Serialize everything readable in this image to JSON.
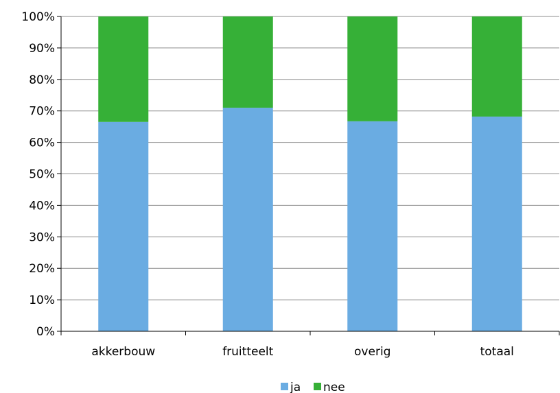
{
  "chart_data": {
    "type": "bar",
    "stacked": true,
    "percent": true,
    "categories": [
      "akkerbouw",
      "fruitteelt",
      "overig",
      "totaal"
    ],
    "series": [
      {
        "name": "ja",
        "values": [
          66.5,
          71,
          66.7,
          68.2
        ],
        "color": "#6aace2"
      },
      {
        "name": "nee",
        "values": [
          33.5,
          29,
          33.3,
          31.8
        ],
        "color": "#36b037"
      }
    ],
    "y_ticks": [
      "0%",
      "10%",
      "20%",
      "30%",
      "40%",
      "50%",
      "60%",
      "70%",
      "80%",
      "90%",
      "100%"
    ],
    "ylim": [
      0,
      100
    ],
    "grid": true,
    "legend_position": "bottom"
  }
}
